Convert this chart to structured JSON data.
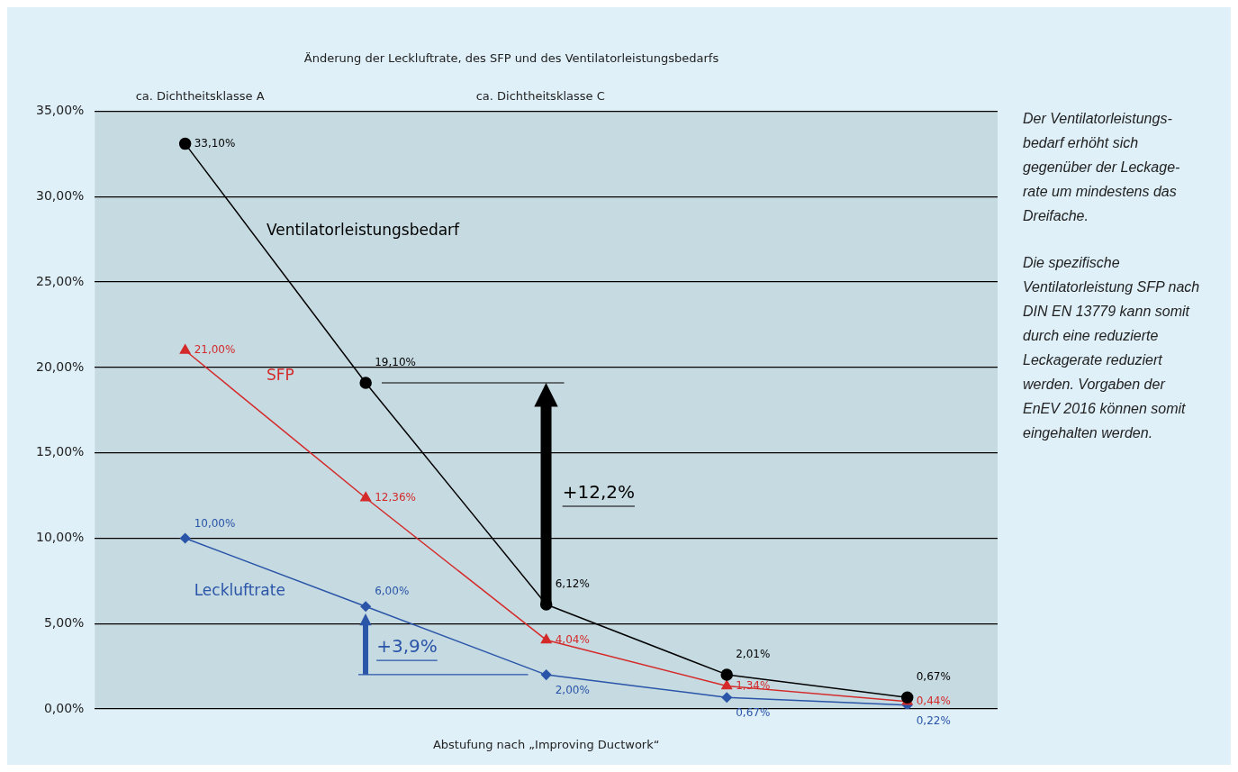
{
  "chart_data": {
    "type": "line",
    "title": "Änderung der Leckluftrate, des SFP und des Ventilatorleistungsbedarfs",
    "xlabel": "Abstufung nach „Improving Ductwork“",
    "categories": [
      null,
      null,
      null,
      null,
      null
    ],
    "series": [
      {
        "name": "Ventilatorleistungsbedarf",
        "color": "#000000",
        "marker": "circle",
        "values": [
          33.1,
          19.1,
          6.12,
          2.01,
          0.67
        ],
        "value_labels": [
          "33,10%",
          "19,10%",
          "6,12%",
          "2,01%",
          "0,67%"
        ]
      },
      {
        "name": "SFP",
        "color": "#d42a2a",
        "marker": "triangle",
        "values": [
          21.0,
          12.36,
          4.04,
          1.34,
          0.44
        ],
        "value_labels": [
          "21,00%",
          "12,36%",
          "4,04%",
          "1,34%",
          "0,44%"
        ]
      },
      {
        "name": "Leckluftrate",
        "color": "#2a55a8",
        "marker": "diamond",
        "values": [
          10.0,
          6.0,
          2.0,
          0.67,
          0.22
        ],
        "value_labels": [
          "10,00%",
          "6,00%",
          "2,00%",
          "0,67%",
          "0,22%"
        ]
      }
    ],
    "ylim": [
      0,
      35
    ],
    "yticks": [
      {
        "value": 0,
        "label": "0,00%"
      },
      {
        "value": 5,
        "label": "5,00%"
      },
      {
        "value": 10,
        "label": "10,00%"
      },
      {
        "value": 15,
        "label": "15,00%"
      },
      {
        "value": 20,
        "label": "20,00%"
      },
      {
        "value": 25,
        "label": "25,00%"
      },
      {
        "value": 30,
        "label": "30,00%"
      },
      {
        "value": 35,
        "label": "35,00%"
      }
    ],
    "grid": "y",
    "legend": false,
    "annotations": [
      "ca. Dichtheitsklasse A",
      "ca. Dichtheitsklasse C",
      "+12,2%",
      "+3,9%",
      "Der Ventilatorleistungs-bedarf erhöht sich gegenüber der Leckage-rate um mindestens das Dreifache.",
      "Die spezifische Ventilatorleistung SFP nach DIN EN 13779 kann somit durch eine reduzierte Leckagerate reduziert werden. Vorgaben der EnEV 2016 können somit eingehalten werden."
    ]
  }
}
